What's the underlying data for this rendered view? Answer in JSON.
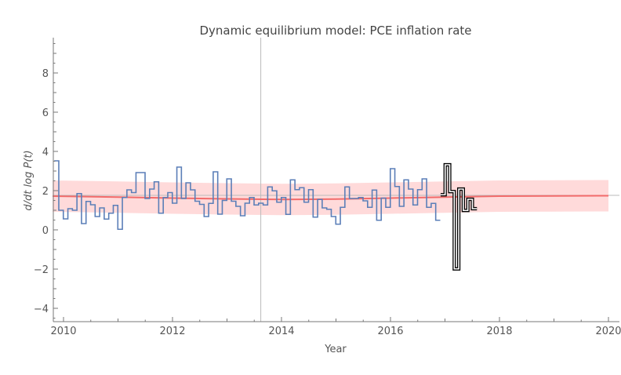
{
  "chart_data": {
    "type": "line",
    "title": "Dynamic equilibrium model: PCE inflation rate",
    "xlabel": "Year",
    "ylabel": "d/dt log P(t)",
    "xlim": [
      2009.8,
      2020.2
    ],
    "ylim": [
      -4.7,
      9.8
    ],
    "xticks": [
      "2010",
      "2012",
      "2014",
      "2016",
      "2018",
      "2020"
    ],
    "yticks": [
      "−4",
      "−2",
      "0",
      "2",
      "4",
      "6",
      "8"
    ],
    "grid": false,
    "reference_lines": {
      "vertical_x": 2013.62,
      "horizontal_y": 1.76,
      "color": "#bbbbbb"
    },
    "series": [
      {
        "style": "step",
        "color": "#5b7fb8",
        "x_start": 2009.83,
        "frequency": "monthly",
        "values": [
          3.52,
          1.0,
          0.56,
          1.08,
          1.0,
          1.85,
          0.32,
          1.45,
          1.28,
          0.68,
          1.12,
          0.55,
          0.85,
          1.25,
          0.03,
          1.65,
          2.04,
          1.9,
          2.92,
          2.92,
          1.6,
          2.08,
          2.45,
          0.85,
          1.65,
          1.9,
          1.36,
          3.2,
          1.6,
          2.4,
          2.04,
          1.46,
          1.3,
          0.68,
          1.35,
          2.96,
          0.8,
          1.5,
          2.6,
          1.46,
          1.2,
          0.72,
          1.36,
          1.65,
          1.27,
          1.36,
          1.27,
          2.19,
          1.99,
          1.41,
          1.65,
          0.79,
          2.55,
          2.05,
          2.15,
          1.41,
          2.05,
          0.65,
          1.55,
          1.12,
          1.05,
          0.68,
          0.29,
          1.15,
          2.19,
          1.6,
          1.6,
          1.65,
          1.48,
          1.15,
          2.03,
          0.49,
          1.62,
          1.15,
          3.12,
          2.21,
          1.2,
          2.55,
          2.08,
          1.27,
          2.05,
          2.6,
          1.15,
          1.35,
          0.49
        ]
      },
      {
        "style": "step",
        "color": "#000000",
        "x_start": 2016.92,
        "frequency": "monthly",
        "values": [
          1.79,
          3.32,
          1.95,
          -1.99,
          2.08,
          0.99,
          1.56,
          1.08
        ]
      },
      {
        "style": "line",
        "color": "#f26b6b",
        "x": [
          2009.8,
          2011,
          2012,
          2013,
          2014,
          2015,
          2016,
          2017,
          2018,
          2019,
          2020
        ],
        "values": [
          1.72,
          1.67,
          1.62,
          1.58,
          1.55,
          1.57,
          1.62,
          1.67,
          1.72,
          1.73,
          1.74
        ],
        "band": {
          "lower_offset": -0.8,
          "upper_offset": 0.8,
          "color": "#ffd6d6"
        }
      }
    ]
  }
}
